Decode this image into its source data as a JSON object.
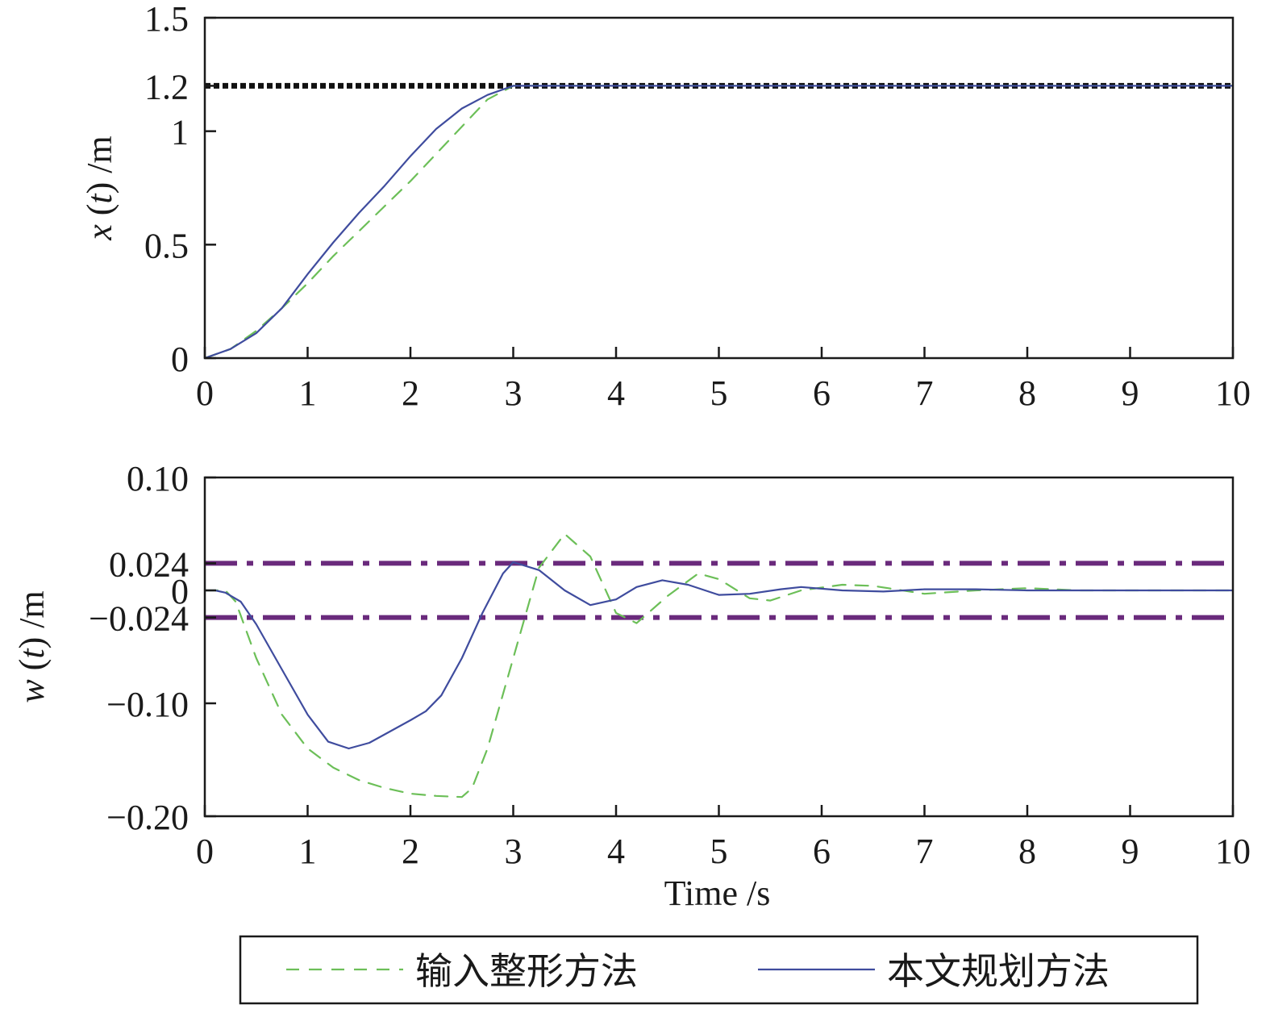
{
  "chart_data": [
    {
      "type": "line",
      "xlim": [
        0,
        10
      ],
      "ylim": [
        0,
        1.5
      ],
      "xticks": [
        "0",
        "1",
        "2",
        "3",
        "4",
        "5",
        "6",
        "7",
        "8",
        "9",
        "10"
      ],
      "yticks": [
        {
          "value": 0,
          "label": "0"
        },
        {
          "value": 0.5,
          "label": "0.5"
        },
        {
          "value": 1,
          "label": "1"
        },
        {
          "value": 1.2,
          "label": "1.2"
        },
        {
          "value": 1.5,
          "label": "1.5"
        }
      ],
      "ylabel": {
        "var": "x",
        "arg": "t",
        "unit": "/m"
      },
      "xlabel": "",
      "grid": false,
      "reference_lines": [
        {
          "y": 1.2,
          "style": "dotted",
          "color": "#111111"
        }
      ],
      "series": [
        {
          "name": "输入整形方法",
          "style": "dashed",
          "color": "#6cbf58",
          "x": [
            0,
            0.25,
            0.5,
            0.75,
            1.0,
            1.25,
            1.5,
            1.75,
            2.0,
            2.25,
            2.5,
            2.75,
            3.0,
            3.5,
            4,
            5,
            6,
            7,
            8,
            9,
            10
          ],
          "y": [
            0,
            0.04,
            0.12,
            0.22,
            0.33,
            0.45,
            0.56,
            0.67,
            0.78,
            0.9,
            1.02,
            1.14,
            1.2,
            1.2,
            1.2,
            1.2,
            1.2,
            1.2,
            1.2,
            1.2,
            1.2
          ]
        },
        {
          "name": "本文规划方法",
          "style": "solid",
          "color": "#3f4c9e",
          "x": [
            0,
            0.25,
            0.5,
            0.75,
            1.0,
            1.25,
            1.5,
            1.75,
            2.0,
            2.25,
            2.5,
            2.75,
            3.0,
            3.5,
            4,
            5,
            6,
            7,
            8,
            9,
            10
          ],
          "y": [
            0,
            0.04,
            0.11,
            0.22,
            0.37,
            0.51,
            0.64,
            0.76,
            0.89,
            1.01,
            1.1,
            1.16,
            1.2,
            1.2,
            1.2,
            1.2,
            1.2,
            1.2,
            1.2,
            1.2,
            1.2
          ]
        }
      ]
    },
    {
      "type": "line",
      "xlim": [
        0,
        10
      ],
      "ylim": [
        -0.2,
        0.1
      ],
      "xticks": [
        "0",
        "1",
        "2",
        "3",
        "4",
        "5",
        "6",
        "7",
        "8",
        "9",
        "10"
      ],
      "yticks": [
        {
          "value": 0.1,
          "label": "0.10"
        },
        {
          "value": 0.024,
          "label": "0.024"
        },
        {
          "value": 0,
          "label": "0"
        },
        {
          "value": -0.024,
          "label": "−0.024"
        },
        {
          "value": -0.1,
          "label": "−0.10"
        },
        {
          "value": -0.2,
          "label": "−0.20"
        }
      ],
      "ylabel": {
        "var": "w",
        "arg": "t",
        "unit": "/m"
      },
      "xlabel": "Time /s",
      "grid": false,
      "reference_lines": [
        {
          "y": 0.024,
          "style": "dashdot",
          "color": "#6a2a7c"
        },
        {
          "y": -0.024,
          "style": "dashdot",
          "color": "#6a2a7c"
        }
      ],
      "series": [
        {
          "name": "输入整形方法",
          "style": "dashed",
          "color": "#6cbf58",
          "x": [
            0,
            0.2,
            0.3,
            0.5,
            0.75,
            1.0,
            1.25,
            1.5,
            1.75,
            2.0,
            2.25,
            2.5,
            2.6,
            2.75,
            3.0,
            3.25,
            3.5,
            3.75,
            4.0,
            4.2,
            4.5,
            4.8,
            5.0,
            5.3,
            5.5,
            5.8,
            6.2,
            6.5,
            7.0,
            7.5,
            8,
            8.5,
            9,
            10
          ],
          "y": [
            0,
            0,
            -0.01,
            -0.06,
            -0.11,
            -0.14,
            -0.157,
            -0.168,
            -0.175,
            -0.18,
            -0.182,
            -0.183,
            -0.175,
            -0.14,
            -0.06,
            0.02,
            0.05,
            0.03,
            -0.02,
            -0.029,
            -0.005,
            0.015,
            0.01,
            -0.007,
            -0.009,
            0,
            0.005,
            0.004,
            -0.003,
            0,
            0.002,
            0,
            0,
            0
          ]
        },
        {
          "name": "本文规划方法",
          "style": "solid",
          "color": "#3f4c9e",
          "x": [
            0,
            0.1,
            0.2,
            0.35,
            0.5,
            0.75,
            1.0,
            1.2,
            1.4,
            1.6,
            1.8,
            2.0,
            2.15,
            2.3,
            2.5,
            2.7,
            2.9,
            3.0,
            3.25,
            3.5,
            3.75,
            4.0,
            4.2,
            4.45,
            4.7,
            5.0,
            5.3,
            5.6,
            5.8,
            6.2,
            6.6,
            7.0,
            7.5,
            8,
            9,
            10
          ],
          "y": [
            0,
            0,
            -0.002,
            -0.01,
            -0.03,
            -0.07,
            -0.11,
            -0.134,
            -0.14,
            -0.135,
            -0.125,
            -0.115,
            -0.107,
            -0.093,
            -0.06,
            -0.02,
            0.015,
            0.025,
            0.018,
            0,
            -0.013,
            -0.008,
            0.003,
            0.009,
            0.005,
            -0.004,
            -0.003,
            0.001,
            0.003,
            0,
            -0.001,
            0.001,
            0.001,
            0,
            0,
            0
          ]
        }
      ]
    }
  ],
  "legend": {
    "placement": "bottom",
    "items": [
      {
        "label": "输入整形方法",
        "style": "dashed",
        "color": "#6cbf58"
      },
      {
        "label": "本文规划方法",
        "style": "solid",
        "color": "#3f4c9e"
      }
    ]
  }
}
